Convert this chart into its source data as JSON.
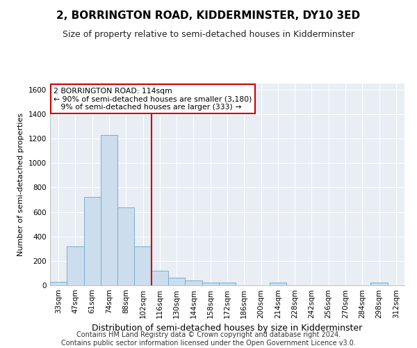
{
  "title": "2, BORRINGTON ROAD, KIDDERMINSTER, DY10 3ED",
  "subtitle": "Size of property relative to semi-detached houses in Kidderminster",
  "xlabel": "Distribution of semi-detached houses by size in Kidderminster",
  "ylabel": "Number of semi-detached properties",
  "footer1": "Contains HM Land Registry data © Crown copyright and database right 2024.",
  "footer2": "Contains public sector information licensed under the Open Government Licence v3.0.",
  "bar_labels": [
    "33sqm",
    "47sqm",
    "61sqm",
    "74sqm",
    "88sqm",
    "102sqm",
    "116sqm",
    "130sqm",
    "144sqm",
    "158sqm",
    "172sqm",
    "186sqm",
    "200sqm",
    "214sqm",
    "228sqm",
    "242sqm",
    "256sqm",
    "270sqm",
    "284sqm",
    "298sqm",
    "312sqm"
  ],
  "bar_values": [
    30,
    320,
    720,
    1230,
    640,
    320,
    120,
    65,
    40,
    25,
    25,
    0,
    0,
    25,
    0,
    0,
    0,
    0,
    0,
    25,
    0
  ],
  "bar_color": "#ccdded",
  "bar_edge_color": "#7aafc8",
  "vline_color": "#cc0000",
  "vline_bin_index": 6,
  "annotation_line1": "2 BORRINGTON ROAD: 114sqm",
  "annotation_line2": "← 90% of semi-detached houses are smaller (3,180)",
  "annotation_line3": "9% of semi-detached houses are larger (333) →",
  "annotation_box_facecolor": "#ffffff",
  "annotation_box_edgecolor": "#cc0000",
  "ylim": [
    0,
    1650
  ],
  "background_color": "#ffffff",
  "plot_bg_color": "#e8eef4",
  "grid_color": "#ffffff",
  "title_fontsize": 11,
  "subtitle_fontsize": 9,
  "ylabel_fontsize": 8,
  "xlabel_fontsize": 9,
  "tick_fontsize": 7.5,
  "footer_fontsize": 7
}
